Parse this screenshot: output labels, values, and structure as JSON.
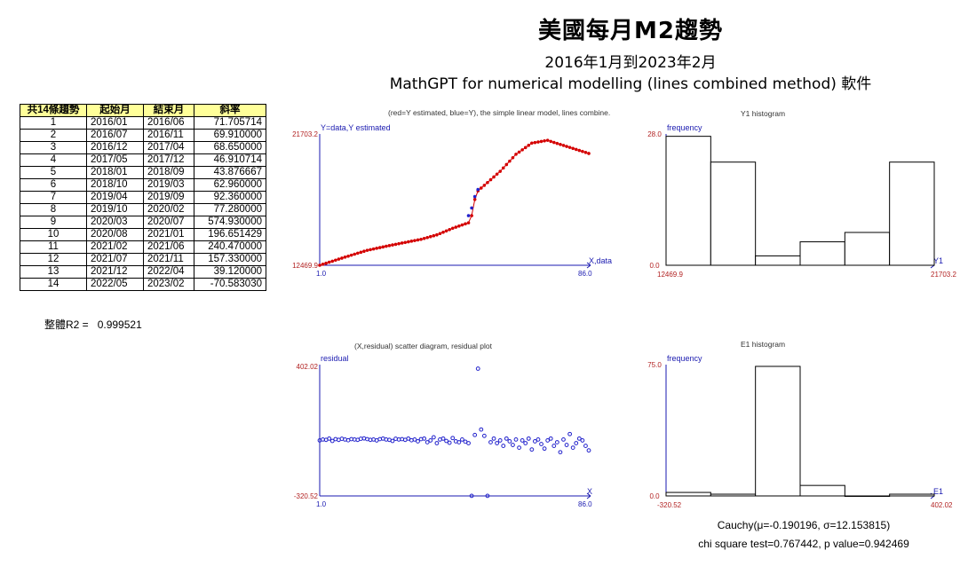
{
  "header": {
    "title": "美國每月M2趨勢",
    "subtitle": "2016年1月到2023年2月",
    "software": "MathGPT for numerical modelling (lines combined method) 軟件"
  },
  "table": {
    "headers": [
      "共14條趨勢",
      "起始月",
      "結束月",
      "斜率"
    ],
    "rows": [
      [
        "1",
        "2016/01",
        "2016/06",
        "71.705714"
      ],
      [
        "2",
        "2016/07",
        "2016/11",
        "69.910000"
      ],
      [
        "3",
        "2016/12",
        "2017/04",
        "68.650000"
      ],
      [
        "4",
        "2017/05",
        "2017/12",
        "46.910714"
      ],
      [
        "5",
        "2018/01",
        "2018/09",
        "43.876667"
      ],
      [
        "6",
        "2018/10",
        "2019/03",
        "62.960000"
      ],
      [
        "7",
        "2019/04",
        "2019/09",
        "92.360000"
      ],
      [
        "8",
        "2019/10",
        "2020/02",
        "77.280000"
      ],
      [
        "9",
        "2020/03",
        "2020/07",
        "574.930000"
      ],
      [
        "10",
        "2020/08",
        "2021/01",
        "196.651429"
      ],
      [
        "11",
        "2021/02",
        "2021/06",
        "240.470000"
      ],
      [
        "12",
        "2021/07",
        "2021/11",
        "157.330000"
      ],
      [
        "13",
        "2021/12",
        "2022/04",
        "39.120000"
      ],
      [
        "14",
        "2022/05",
        "2023/02",
        "-70.583030"
      ]
    ],
    "r2_label": "整體R2 =",
    "r2_value": "0.999521"
  },
  "stats": {
    "cauchy": "Cauchy(μ=-0.190196, σ=12.153815)",
    "chi": "chi square test=0.767442, p value=0.942469"
  },
  "colors": {
    "axis": "#1a1ab0",
    "tick": "#b22222",
    "estimated": "#d40000",
    "data": "#2222cc",
    "header_bg": "#ffff99"
  },
  "chart_data": [
    {
      "type": "line",
      "title": "(red=Y estimated, blue=Y), the simple linear model, lines combine.",
      "ylabel": "Y=data,Y estimated",
      "xlabel": "X,data",
      "xlim": [
        1.0,
        86.0
      ],
      "ylim": [
        12469.9,
        21703.2
      ],
      "tick_labels_x": [
        "1.0",
        "86.0"
      ],
      "tick_labels_y": [
        "12469.9",
        "21703.2"
      ],
      "series": [
        {
          "name": "Y estimated",
          "color": "#d40000"
        },
        {
          "name": "Y",
          "color": "#2222cc"
        }
      ],
      "x": [
        1,
        2,
        3,
        4,
        5,
        6,
        7,
        8,
        9,
        10,
        11,
        12,
        13,
        14,
        15,
        16,
        17,
        18,
        19,
        20,
        21,
        22,
        23,
        24,
        25,
        26,
        27,
        28,
        29,
        30,
        31,
        32,
        33,
        34,
        35,
        36,
        37,
        38,
        39,
        40,
        41,
        42,
        43,
        44,
        45,
        46,
        47,
        48,
        49,
        50,
        51,
        52,
        53,
        54,
        55,
        56,
        57,
        58,
        59,
        60,
        61,
        62,
        63,
        64,
        65,
        66,
        67,
        68,
        69,
        70,
        71,
        72,
        73,
        74,
        75,
        76,
        77,
        78,
        79,
        80,
        81,
        82,
        83,
        84,
        85,
        86
      ],
      "y": [
        12470,
        12542,
        12613,
        12685,
        12757,
        12828,
        12900,
        12970,
        13040,
        13110,
        13180,
        13249,
        13317,
        13386,
        13455,
        13523,
        13570,
        13617,
        13664,
        13711,
        13758,
        13805,
        13852,
        13899,
        13943,
        13987,
        14031,
        14075,
        14119,
        14163,
        14206,
        14250,
        14294,
        14357,
        14420,
        14483,
        14546,
        14609,
        14701,
        14794,
        14886,
        14978,
        15071,
        15148,
        15226,
        15303,
        15380,
        15457,
        15957,
        17100,
        17700,
        17900,
        18091,
        18288,
        18484,
        18681,
        18877,
        19074,
        19312,
        19552,
        19793,
        20033,
        20274,
        20431,
        20588,
        20746,
        20903,
        21060,
        21099,
        21138,
        21177,
        21216,
        21256,
        21180,
        21109,
        21039,
        20968,
        20898,
        20827,
        20757,
        20686,
        20616,
        20545,
        20475,
        20404,
        20334
      ]
    },
    {
      "type": "bar",
      "title": "Y1 histogram",
      "ylabel": "frequency",
      "xlabel": "Y1",
      "xlim": [
        12469.9,
        21703.2
      ],
      "ylim": [
        0.0,
        28.0
      ],
      "tick_labels_x": [
        "12469.9",
        "21703.2"
      ],
      "tick_labels_y": [
        "0.0",
        "28.0"
      ],
      "values": [
        27.5,
        22,
        2,
        5,
        7,
        22
      ]
    },
    {
      "type": "scatter",
      "title": "(X,residual) scatter diagram, residual plot",
      "ylabel": "residual",
      "xlabel": "X",
      "xlim": [
        1.0,
        86.0
      ],
      "ylim": [
        -320.52,
        402.02
      ],
      "tick_labels_x": [
        "1.0",
        "86.0"
      ],
      "tick_labels_y": [
        "402.02",
        "-320.52"
      ],
      "x": [
        1,
        2,
        3,
        4,
        5,
        6,
        7,
        8,
        9,
        10,
        11,
        12,
        13,
        14,
        15,
        16,
        17,
        18,
        19,
        20,
        21,
        22,
        23,
        24,
        25,
        26,
        27,
        28,
        29,
        30,
        31,
        32,
        33,
        34,
        35,
        36,
        37,
        38,
        39,
        40,
        41,
        42,
        43,
        44,
        45,
        46,
        47,
        48,
        49,
        50,
        51,
        52,
        53,
        54,
        55,
        56,
        57,
        58,
        59,
        60,
        61,
        62,
        63,
        64,
        65,
        66,
        67,
        68,
        69,
        70,
        71,
        72,
        73,
        74,
        75,
        76,
        77,
        78,
        79,
        80,
        81,
        82,
        83,
        84,
        85,
        86
      ],
      "y": [
        -15,
        -10,
        -12,
        -5,
        -18,
        -8,
        -12,
        -6,
        -10,
        -14,
        -8,
        -10,
        -12,
        -6,
        -4,
        -8,
        -12,
        -10,
        -15,
        -8,
        -5,
        -10,
        -12,
        -18,
        -6,
        -10,
        -8,
        -12,
        -5,
        -14,
        -10,
        -20,
        -8,
        -5,
        -25,
        -15,
        2,
        -30,
        -10,
        -5,
        -18,
        -28,
        -2,
        -20,
        -25,
        -10,
        -22,
        -30,
        -320,
        15,
        380,
        45,
        10,
        -320,
        -25,
        -5,
        -30,
        -15,
        -45,
        -5,
        -20,
        -40,
        -10,
        -55,
        -15,
        -30,
        -5,
        -65,
        -20,
        -10,
        -35,
        -60,
        -15,
        -5,
        -45,
        -25,
        -80,
        -10,
        -40,
        20,
        -55,
        -30,
        -5,
        -15,
        -45,
        -70
      ]
    },
    {
      "type": "bar",
      "title": "E1 histogram",
      "ylabel": "frequency",
      "xlabel": "E1",
      "xlim": [
        -320.52,
        402.02
      ],
      "ylim": [
        0.0,
        75.0
      ],
      "tick_labels_x": [
        "-320.52",
        "402.02"
      ],
      "tick_labels_y": [
        "0.0",
        "75.0"
      ],
      "values": [
        2,
        1,
        74,
        6,
        0,
        1
      ]
    }
  ]
}
